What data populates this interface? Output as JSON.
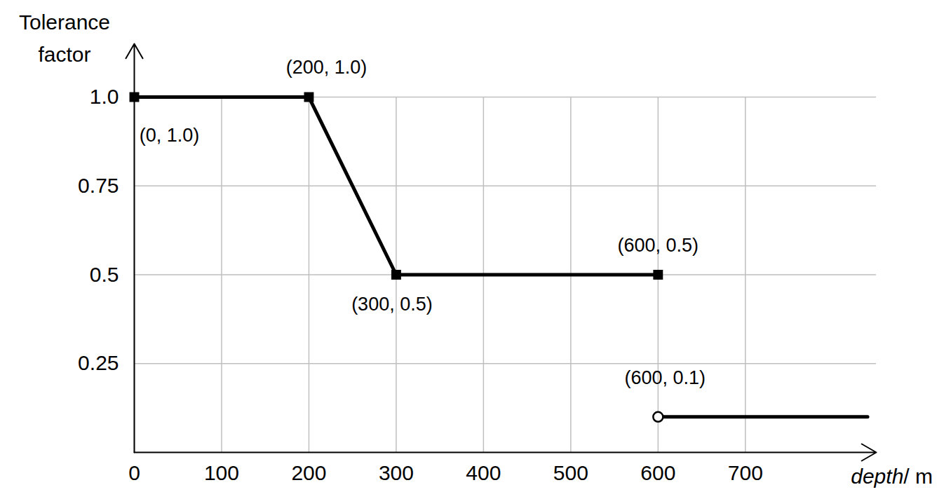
{
  "chart_data": {
    "type": "line",
    "x_label": "depth/ m",
    "y_label": "Tolerance factor",
    "xlim": [
      0,
      850
    ],
    "ylim": [
      0,
      1.15
    ],
    "xticks": [
      0,
      100,
      200,
      300,
      400,
      500,
      600,
      700
    ],
    "yticks": [
      0.25,
      0.5,
      0.75,
      {
        "value": 1,
        "label": "1.0"
      }
    ],
    "grid": true,
    "series": [
      {
        "type": "line",
        "x": [
          0,
          200,
          300,
          600
        ],
        "values": [
          1,
          1,
          0.5,
          0.5
        ],
        "color": "#000000",
        "marker": "square"
      },
      {
        "type": "line",
        "x": [
          600,
          840
        ],
        "values": [
          0.1,
          0.1
        ],
        "color": "#000000",
        "marker": "none"
      },
      {
        "type": "scatter",
        "x": [
          600
        ],
        "values": [
          0.1
        ],
        "color": "#000000",
        "marker": "circle-open"
      }
    ],
    "annotations": [
      {
        "text": "(0, 1.0)",
        "x": 0,
        "y": 1
      },
      {
        "text": "(200, 1.0)",
        "x": 200,
        "y": 1
      },
      {
        "text": "(300, 0.5)",
        "x": 300,
        "y": 0.5
      },
      {
        "text": "(600, 0.5)",
        "x": 600,
        "y": 0.5
      },
      {
        "text": "(600, 0.1)",
        "x": 600,
        "y": 0.1
      }
    ]
  }
}
